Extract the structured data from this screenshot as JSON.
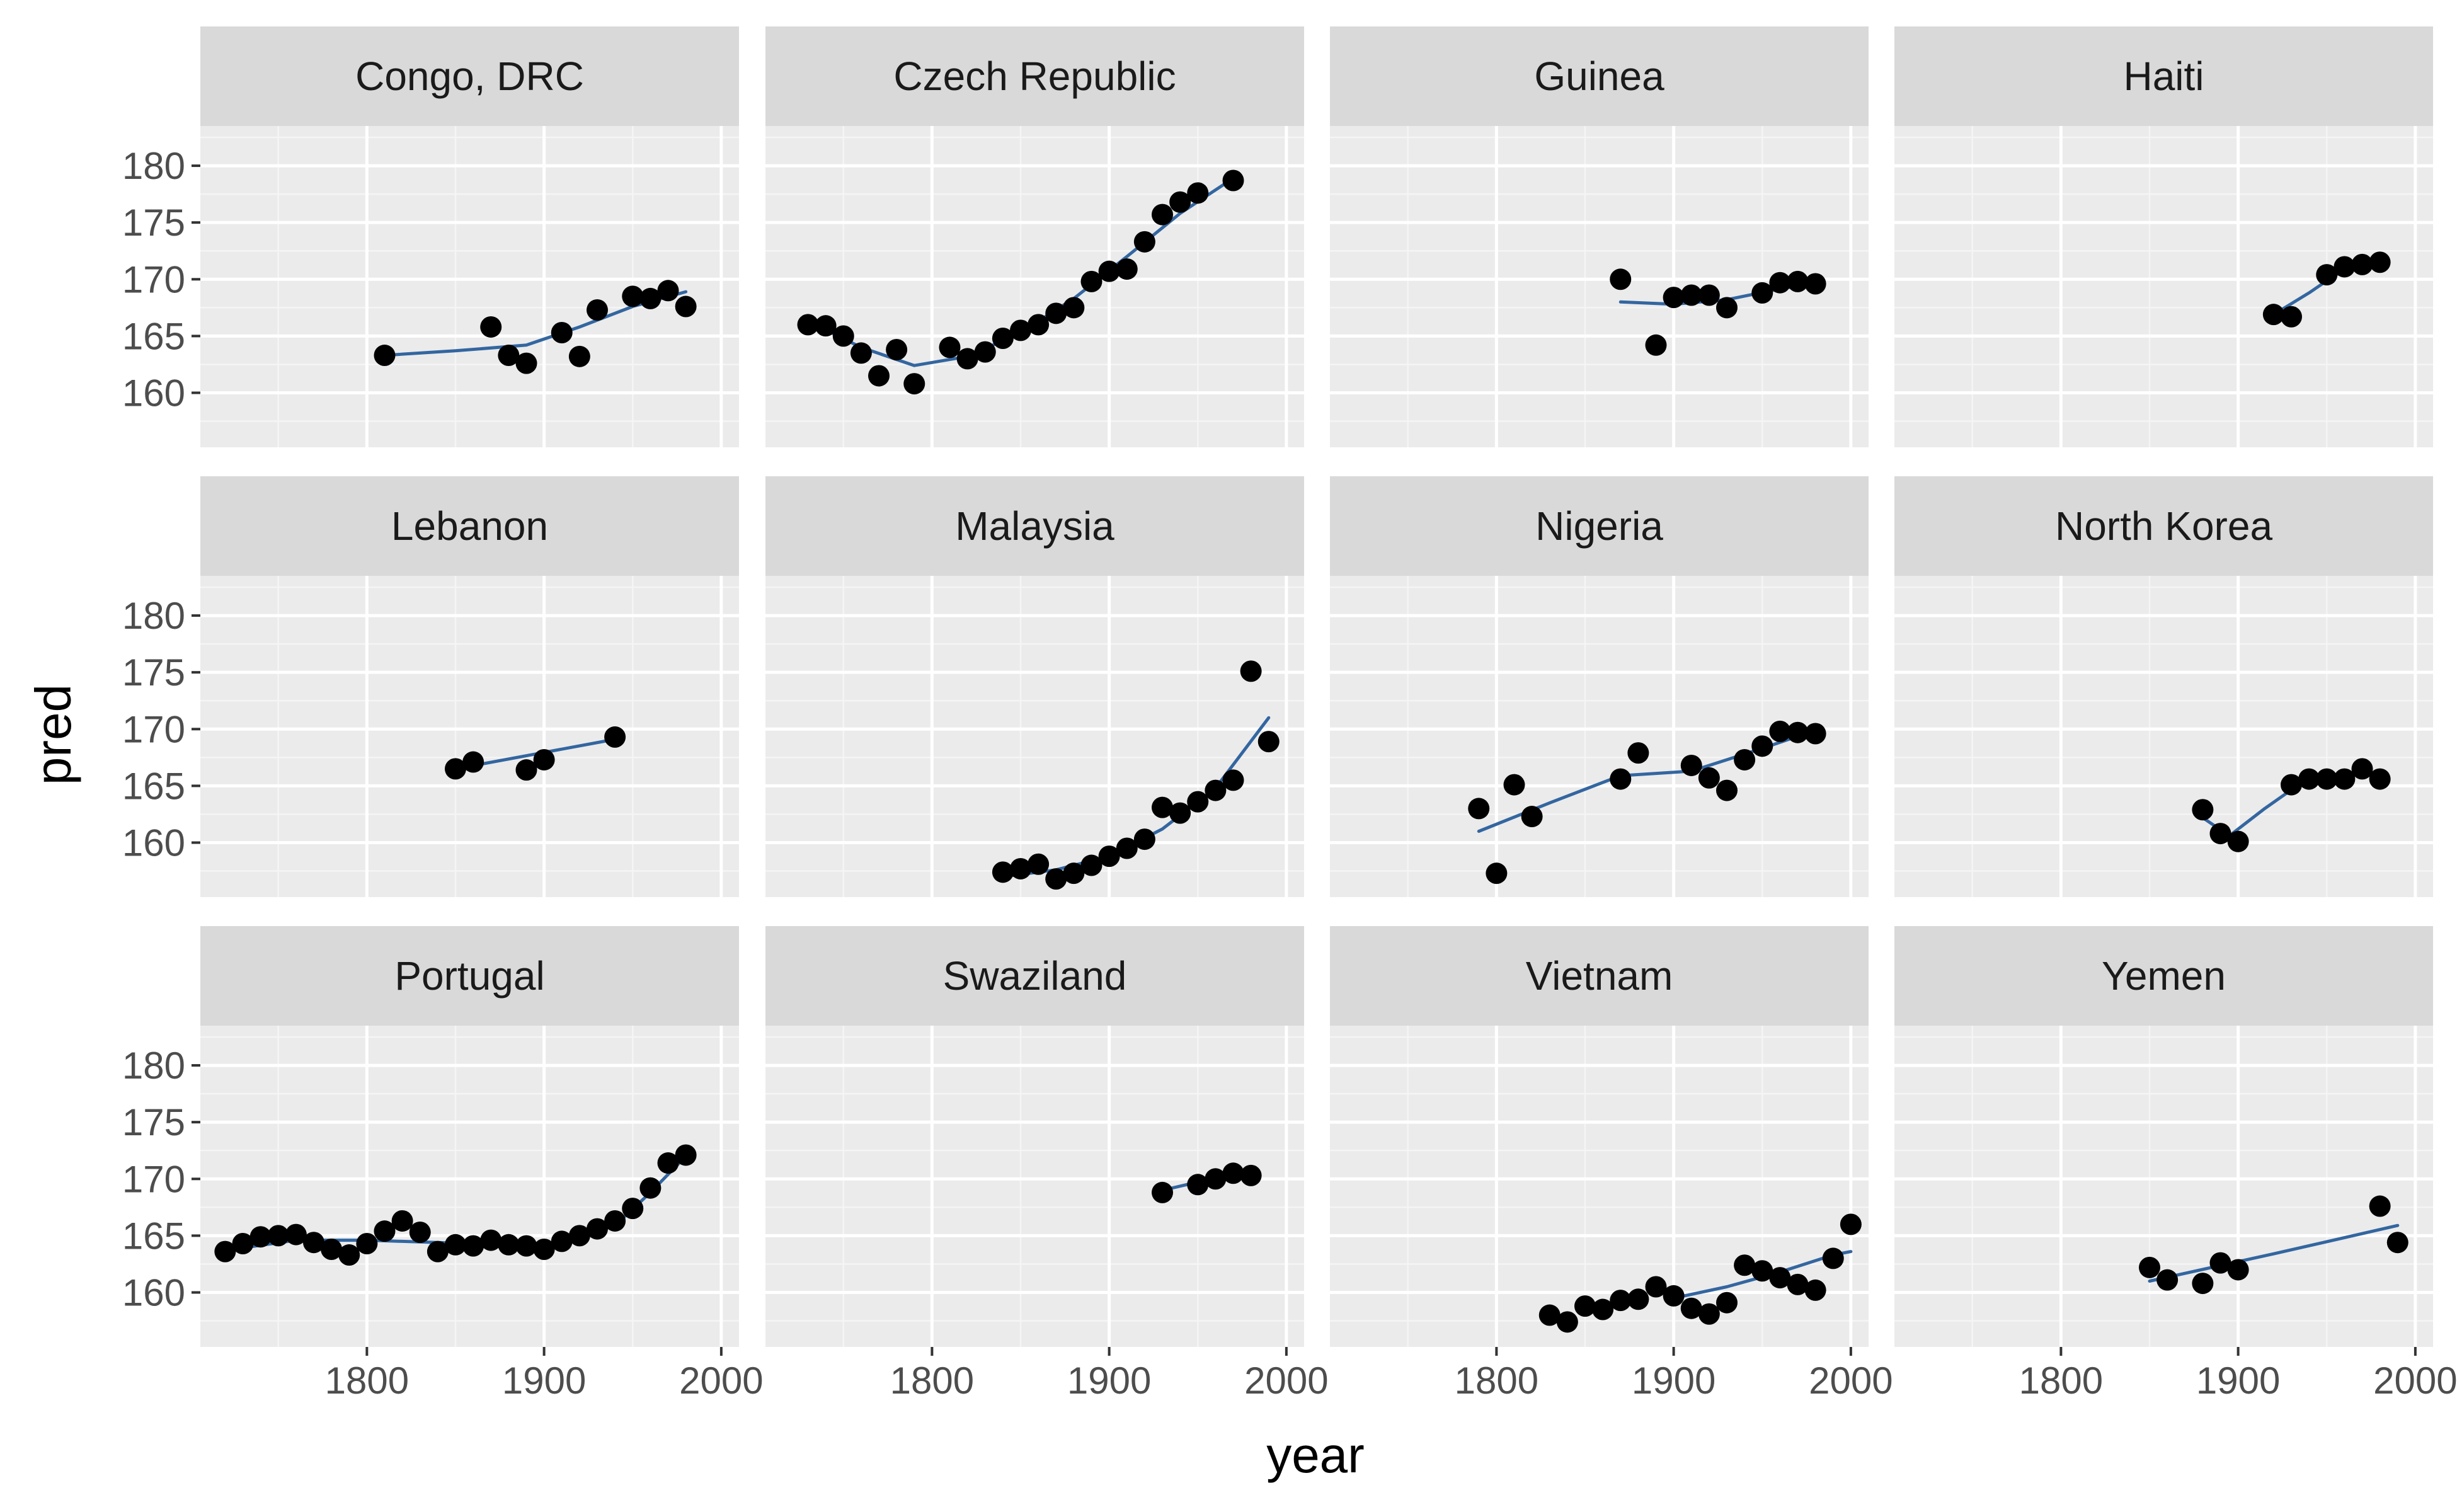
{
  "chart_data": {
    "type": "scatter",
    "title": "",
    "xlabel": "year",
    "ylabel": "pred",
    "xlim": [
      1706,
      2010
    ],
    "ylim": [
      155.2,
      183.5
    ],
    "x_ticks": [
      1800,
      1900,
      2000
    ],
    "y_ticks": [
      160,
      165,
      170,
      175,
      180
    ],
    "grid": true,
    "layout": "facets 3 rows x 4 columns",
    "colors": {
      "points": "#000000",
      "fit_line": "#3366a0",
      "panel": "#ebebeb",
      "strip": "#d9d9d9"
    },
    "facets": [
      {
        "name": "Congo, DRC",
        "points": [
          [
            1810,
            163.3
          ],
          [
            1870,
            165.8
          ],
          [
            1880,
            163.3
          ],
          [
            1890,
            162.6
          ],
          [
            1910,
            165.3
          ],
          [
            1920,
            163.2
          ],
          [
            1930,
            167.3
          ],
          [
            1950,
            168.5
          ],
          [
            1960,
            168.3
          ],
          [
            1970,
            169.0
          ],
          [
            1980,
            167.6
          ]
        ],
        "fit": [
          [
            1810,
            163.3
          ],
          [
            1850,
            163.7
          ],
          [
            1890,
            164.2
          ],
          [
            1920,
            165.8
          ],
          [
            1950,
            167.6
          ],
          [
            1980,
            168.9
          ]
        ]
      },
      {
        "name": "Czech Republic",
        "points": [
          [
            1730,
            166.0
          ],
          [
            1740,
            165.9
          ],
          [
            1750,
            165.0
          ],
          [
            1760,
            163.5
          ],
          [
            1770,
            161.5
          ],
          [
            1780,
            163.8
          ],
          [
            1790,
            160.8
          ],
          [
            1810,
            164.0
          ],
          [
            1820,
            163.0
          ],
          [
            1830,
            163.6
          ],
          [
            1840,
            164.8
          ],
          [
            1850,
            165.5
          ],
          [
            1860,
            166.0
          ],
          [
            1870,
            167.0
          ],
          [
            1880,
            167.5
          ],
          [
            1890,
            169.8
          ],
          [
            1900,
            170.7
          ],
          [
            1910,
            170.9
          ],
          [
            1920,
            173.3
          ],
          [
            1930,
            175.7
          ],
          [
            1940,
            176.8
          ],
          [
            1950,
            177.6
          ],
          [
            1970,
            178.7
          ]
        ],
        "fit": [
          [
            1730,
            166.3
          ],
          [
            1760,
            164.0
          ],
          [
            1790,
            162.4
          ],
          [
            1820,
            163.2
          ],
          [
            1850,
            165.3
          ],
          [
            1880,
            168.3
          ],
          [
            1910,
            172.0
          ],
          [
            1940,
            175.8
          ],
          [
            1970,
            178.9
          ]
        ]
      },
      {
        "name": "Guinea",
        "points": [
          [
            1870,
            170.0
          ],
          [
            1890,
            164.2
          ],
          [
            1900,
            168.4
          ],
          [
            1910,
            168.6
          ],
          [
            1920,
            168.6
          ],
          [
            1930,
            167.5
          ],
          [
            1950,
            168.8
          ],
          [
            1960,
            169.7
          ],
          [
            1970,
            169.8
          ],
          [
            1980,
            169.6
          ]
        ],
        "fit": [
          [
            1870,
            168.0
          ],
          [
            1900,
            167.8
          ],
          [
            1930,
            168.2
          ],
          [
            1955,
            169.0
          ],
          [
            1980,
            169.7
          ]
        ]
      },
      {
        "name": "Haiti",
        "points": [
          [
            1920,
            166.9
          ],
          [
            1930,
            166.7
          ],
          [
            1950,
            170.4
          ],
          [
            1960,
            171.1
          ],
          [
            1970,
            171.3
          ],
          [
            1980,
            171.5
          ]
        ],
        "fit": [
          [
            1920,
            166.9
          ],
          [
            1940,
            168.8
          ],
          [
            1955,
            170.4
          ],
          [
            1980,
            171.6
          ]
        ]
      },
      {
        "name": "Lebanon",
        "points": [
          [
            1850,
            166.5
          ],
          [
            1860,
            167.1
          ],
          [
            1890,
            166.4
          ],
          [
            1900,
            167.3
          ],
          [
            1940,
            169.3
          ]
        ],
        "fit": [
          [
            1850,
            166.5
          ],
          [
            1895,
            167.8
          ],
          [
            1940,
            169.1
          ]
        ]
      },
      {
        "name": "Malaysia",
        "points": [
          [
            1840,
            157.4
          ],
          [
            1850,
            157.7
          ],
          [
            1860,
            158.1
          ],
          [
            1870,
            156.8
          ],
          [
            1880,
            157.3
          ],
          [
            1890,
            158.0
          ],
          [
            1900,
            158.8
          ],
          [
            1910,
            159.5
          ],
          [
            1920,
            160.3
          ],
          [
            1930,
            163.1
          ],
          [
            1940,
            162.6
          ],
          [
            1950,
            163.6
          ],
          [
            1960,
            164.6
          ],
          [
            1970,
            165.5
          ],
          [
            1980,
            175.1
          ],
          [
            1990,
            168.9
          ]
        ],
        "fit": [
          [
            1840,
            157.0
          ],
          [
            1870,
            157.6
          ],
          [
            1900,
            158.8
          ],
          [
            1930,
            161.2
          ],
          [
            1960,
            164.8
          ],
          [
            1990,
            171.0
          ]
        ]
      },
      {
        "name": "Nigeria",
        "points": [
          [
            1790,
            163.0
          ],
          [
            1800,
            157.3
          ],
          [
            1810,
            165.1
          ],
          [
            1820,
            162.3
          ],
          [
            1870,
            165.6
          ],
          [
            1880,
            167.9
          ],
          [
            1910,
            166.8
          ],
          [
            1920,
            165.7
          ],
          [
            1930,
            164.6
          ],
          [
            1940,
            167.3
          ],
          [
            1950,
            168.5
          ],
          [
            1960,
            169.8
          ],
          [
            1970,
            169.7
          ],
          [
            1980,
            169.6
          ]
        ],
        "fit": [
          [
            1790,
            161.0
          ],
          [
            1830,
            163.5
          ],
          [
            1870,
            165.9
          ],
          [
            1910,
            166.3
          ],
          [
            1950,
            168.3
          ],
          [
            1980,
            169.9
          ]
        ]
      },
      {
        "name": "North Korea",
        "points": [
          [
            1880,
            162.9
          ],
          [
            1890,
            160.8
          ],
          [
            1900,
            160.1
          ],
          [
            1930,
            165.1
          ],
          [
            1940,
            165.6
          ],
          [
            1950,
            165.6
          ],
          [
            1960,
            165.6
          ],
          [
            1970,
            166.5
          ],
          [
            1980,
            165.6
          ]
        ],
        "fit": [
          [
            1880,
            162.2
          ],
          [
            1895,
            160.6
          ],
          [
            1915,
            163.0
          ],
          [
            1935,
            165.2
          ],
          [
            1960,
            166.0
          ],
          [
            1980,
            166.2
          ]
        ]
      },
      {
        "name": "Portugal",
        "points": [
          [
            1720,
            163.6
          ],
          [
            1730,
            164.3
          ],
          [
            1740,
            164.9
          ],
          [
            1750,
            165.0
          ],
          [
            1760,
            165.1
          ],
          [
            1770,
            164.4
          ],
          [
            1780,
            163.8
          ],
          [
            1790,
            163.3
          ],
          [
            1800,
            164.3
          ],
          [
            1810,
            165.4
          ],
          [
            1820,
            166.3
          ],
          [
            1830,
            165.3
          ],
          [
            1840,
            163.6
          ],
          [
            1850,
            164.2
          ],
          [
            1860,
            164.1
          ],
          [
            1870,
            164.6
          ],
          [
            1880,
            164.2
          ],
          [
            1890,
            164.1
          ],
          [
            1900,
            163.8
          ],
          [
            1910,
            164.5
          ],
          [
            1920,
            165.0
          ],
          [
            1930,
            165.6
          ],
          [
            1940,
            166.3
          ],
          [
            1950,
            167.4
          ],
          [
            1960,
            169.2
          ],
          [
            1970,
            171.4
          ],
          [
            1980,
            172.1
          ]
        ],
        "fit": [
          [
            1720,
            163.7
          ],
          [
            1760,
            164.6
          ],
          [
            1800,
            164.6
          ],
          [
            1840,
            164.4
          ],
          [
            1880,
            164.2
          ],
          [
            1910,
            164.4
          ],
          [
            1940,
            165.9
          ],
          [
            1960,
            168.8
          ],
          [
            1980,
            172.0
          ]
        ]
      },
      {
        "name": "Swaziland",
        "points": [
          [
            1930,
            168.8
          ],
          [
            1950,
            169.5
          ],
          [
            1960,
            170.0
          ],
          [
            1970,
            170.5
          ],
          [
            1980,
            170.3
          ]
        ],
        "fit": [
          [
            1930,
            169.0
          ],
          [
            1955,
            169.9
          ],
          [
            1980,
            170.4
          ]
        ]
      },
      {
        "name": "Vietnam",
        "points": [
          [
            1830,
            158.0
          ],
          [
            1840,
            157.4
          ],
          [
            1850,
            158.8
          ],
          [
            1860,
            158.5
          ],
          [
            1870,
            159.3
          ],
          [
            1880,
            159.4
          ],
          [
            1890,
            160.5
          ],
          [
            1900,
            159.7
          ],
          [
            1910,
            158.6
          ],
          [
            1920,
            158.1
          ],
          [
            1930,
            159.1
          ],
          [
            1940,
            162.4
          ],
          [
            1950,
            161.9
          ],
          [
            1960,
            161.3
          ],
          [
            1970,
            160.7
          ],
          [
            1980,
            160.2
          ],
          [
            1990,
            163.0
          ],
          [
            2000,
            166.0
          ]
        ],
        "fit": [
          [
            1900,
            159.5
          ],
          [
            1930,
            160.5
          ],
          [
            1960,
            161.8
          ],
          [
            1990,
            163.3
          ],
          [
            2000,
            163.6
          ]
        ]
      },
      {
        "name": "Yemen",
        "points": [
          [
            1850,
            162.2
          ],
          [
            1860,
            161.1
          ],
          [
            1880,
            160.8
          ],
          [
            1890,
            162.6
          ],
          [
            1900,
            162.0
          ],
          [
            1980,
            167.6
          ],
          [
            1990,
            164.4
          ]
        ],
        "fit": [
          [
            1850,
            161.0
          ],
          [
            1920,
            163.4
          ],
          [
            1990,
            165.9
          ]
        ]
      }
    ]
  }
}
